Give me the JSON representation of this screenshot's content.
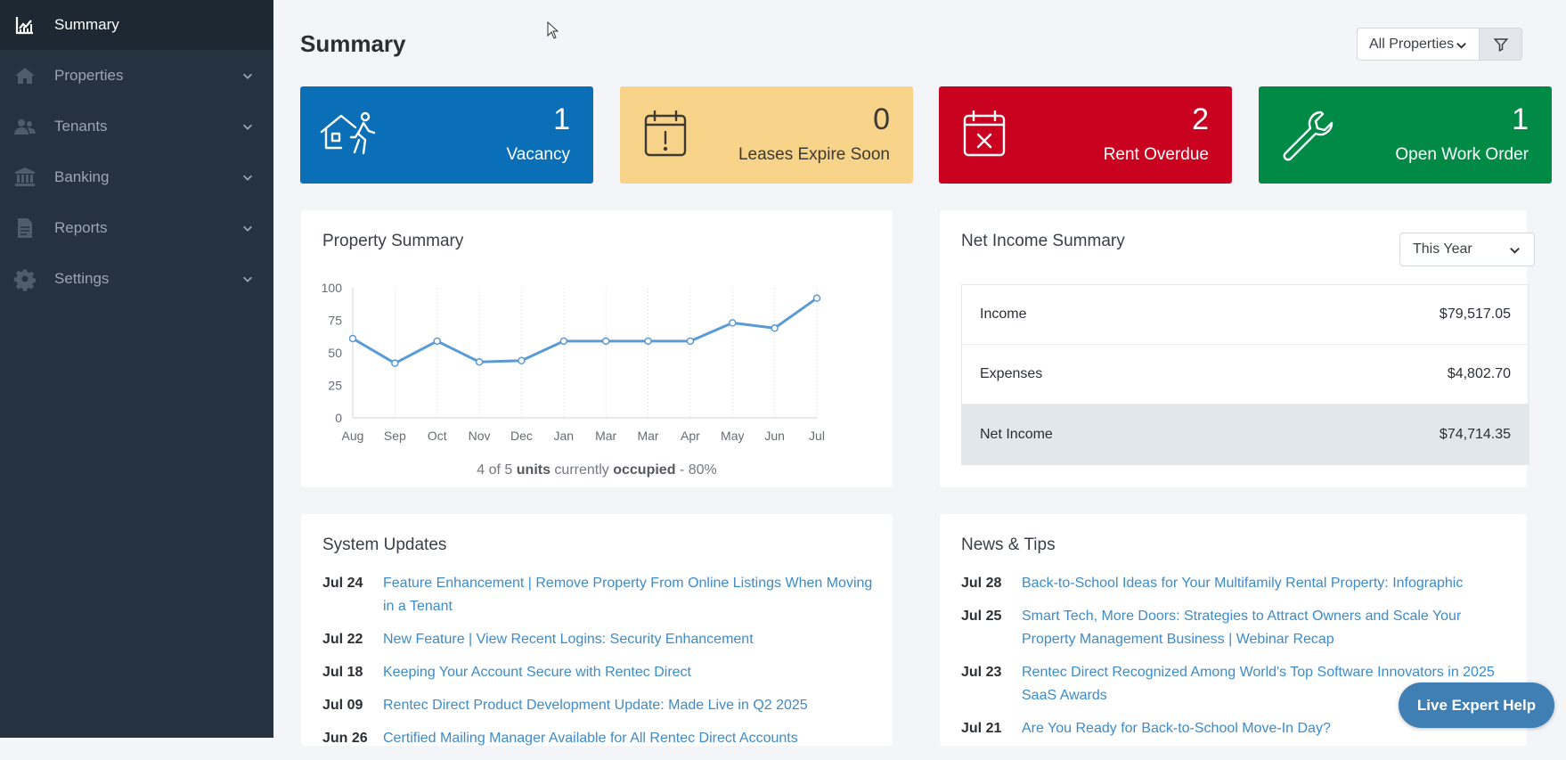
{
  "sidebar": {
    "items": [
      {
        "label": "Summary",
        "icon": "chart-icon"
      },
      {
        "label": "Properties",
        "icon": "home-icon"
      },
      {
        "label": "Tenants",
        "icon": "users-icon"
      },
      {
        "label": "Banking",
        "icon": "bank-icon"
      },
      {
        "label": "Reports",
        "icon": "file-icon"
      },
      {
        "label": "Settings",
        "icon": "gear-icon"
      }
    ]
  },
  "header": {
    "title": "Summary",
    "property_filter": "All Properties"
  },
  "stats": {
    "vacancy": {
      "value": "1",
      "label": "Vacancy"
    },
    "leases": {
      "value": "0",
      "label": "Leases Expire Soon"
    },
    "overdue": {
      "value": "2",
      "label": "Rent Overdue"
    },
    "workorder": {
      "value": "1",
      "label": "Open Work Order"
    }
  },
  "property_summary": {
    "title": "Property Summary",
    "caption": {
      "pre": "4 of 5 ",
      "units": "units",
      "mid": " currently ",
      "occupied": "occupied",
      "post": " - 80%"
    }
  },
  "chart_data": {
    "type": "line",
    "categories": [
      "Aug",
      "Sep",
      "Oct",
      "Nov",
      "Dec",
      "Jan",
      "Mar",
      "Mar",
      "Apr",
      "May",
      "Jun",
      "Jul"
    ],
    "series": [
      {
        "values": [
          61,
          42,
          59,
          43,
          44,
          59,
          59,
          59,
          59,
          73,
          69,
          92
        ]
      }
    ],
    "ylim": [
      0,
      100
    ],
    "yticks": [
      0,
      25,
      50,
      75,
      100
    ],
    "grid": "vertical",
    "color": "#5b9bd5"
  },
  "net_income": {
    "title": "Net Income Summary",
    "period": "This Year",
    "rows": [
      {
        "label": "Income",
        "value": "$79,517.05"
      },
      {
        "label": "Expenses",
        "value": "$4,802.70"
      },
      {
        "label": "Net Income",
        "value": "$74,714.35"
      }
    ]
  },
  "system_updates": {
    "title": "System Updates",
    "items": [
      {
        "date": "Jul 24",
        "text": "Feature Enhancement | Remove Property From Online Listings When Moving in a Tenant"
      },
      {
        "date": "Jul 22",
        "text": "New Feature | View Recent Logins: Security Enhancement"
      },
      {
        "date": "Jul 18",
        "text": "Keeping Your Account Secure with Rentec Direct"
      },
      {
        "date": "Jul 09",
        "text": "Rentec Direct Product Development Update: Made Live in Q2 2025"
      },
      {
        "date": "Jun 26",
        "text": "Certified Mailing Manager Available for All Rentec Direct Accounts"
      }
    ]
  },
  "news": {
    "title": "News & Tips",
    "items": [
      {
        "date": "Jul 28",
        "text": "Back-to-School Ideas for Your Multifamily Rental Property: Infographic"
      },
      {
        "date": "Jul 25",
        "text": "Smart Tech, More Doors: Strategies to Attract Owners and Scale Your Property Management Business | Webinar Recap"
      },
      {
        "date": "Jul 23",
        "text": "Rentec Direct Recognized Among World's Top Software Innovators in 2025 SaaS Awards"
      },
      {
        "date": "Jul 21",
        "text": "Are You Ready for Back-to-School Move-In Day?"
      }
    ]
  },
  "live_help": "Live Expert Help"
}
